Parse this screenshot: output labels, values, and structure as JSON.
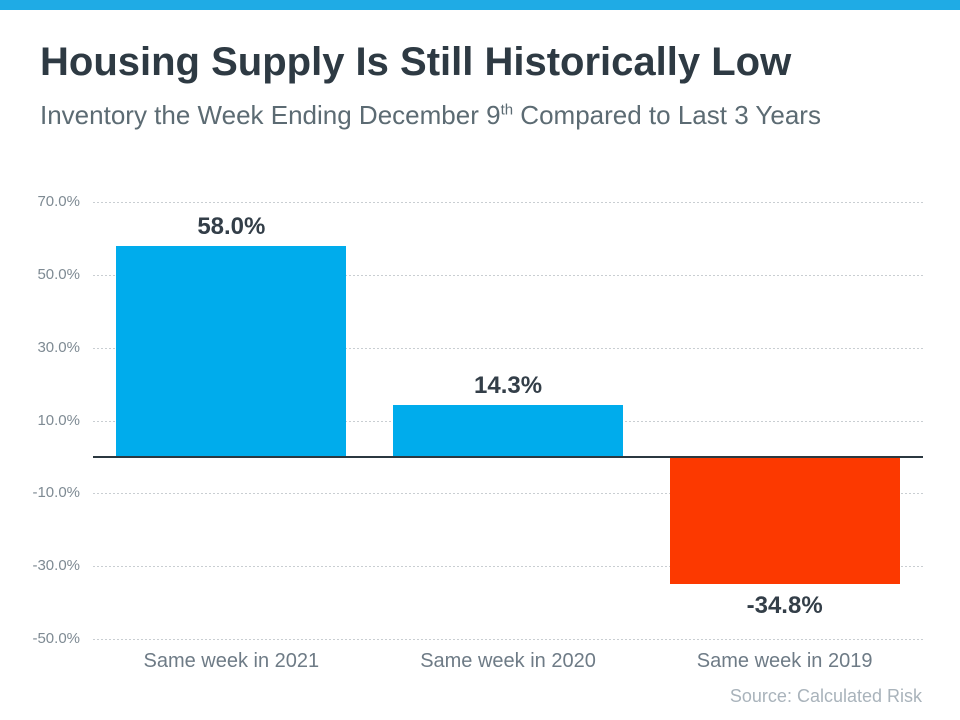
{
  "page": {
    "accent_bar_color": "#1FABE5",
    "background_color": "#FFFFFF"
  },
  "header": {
    "title": "Housing Supply Is Still Historically Low",
    "subtitle_prefix": "Inventory the Week Ending December 9",
    "subtitle_superscript": "th",
    "subtitle_suffix": " Compared to Last 3 Years"
  },
  "chart_data": {
    "type": "bar",
    "title": "Housing Supply Is Still Historically Low",
    "subtitle": "Inventory the Week Ending December 9th Compared to Last 3 Years",
    "categories": [
      "Same week in 2021",
      "Same week in 2020",
      "Same week in 2019"
    ],
    "values": [
      58.0,
      14.3,
      -34.8
    ],
    "value_labels": [
      "58.0%",
      "14.3%",
      "-34.8%"
    ],
    "bar_colors": [
      "#00ACEC",
      "#00ACEC",
      "#FC3900"
    ],
    "positive_color": "#00ACEC",
    "negative_color": "#FC3900",
    "ylim": [
      -50,
      70
    ],
    "yticks": [
      70,
      50,
      30,
      10,
      -10,
      -30,
      -50
    ],
    "ytick_labels": [
      "70.0%",
      "50.0%",
      "30.0%",
      "10.0%",
      "-10.0%",
      "-30.0%",
      "-50.0%"
    ],
    "xlabel": "",
    "ylabel": "",
    "grid": "horizontal-dashed",
    "legend": "none",
    "zero_baseline": true,
    "source": "Source: Calculated Risk"
  },
  "footer": {
    "source": "Source: Calculated Risk"
  }
}
